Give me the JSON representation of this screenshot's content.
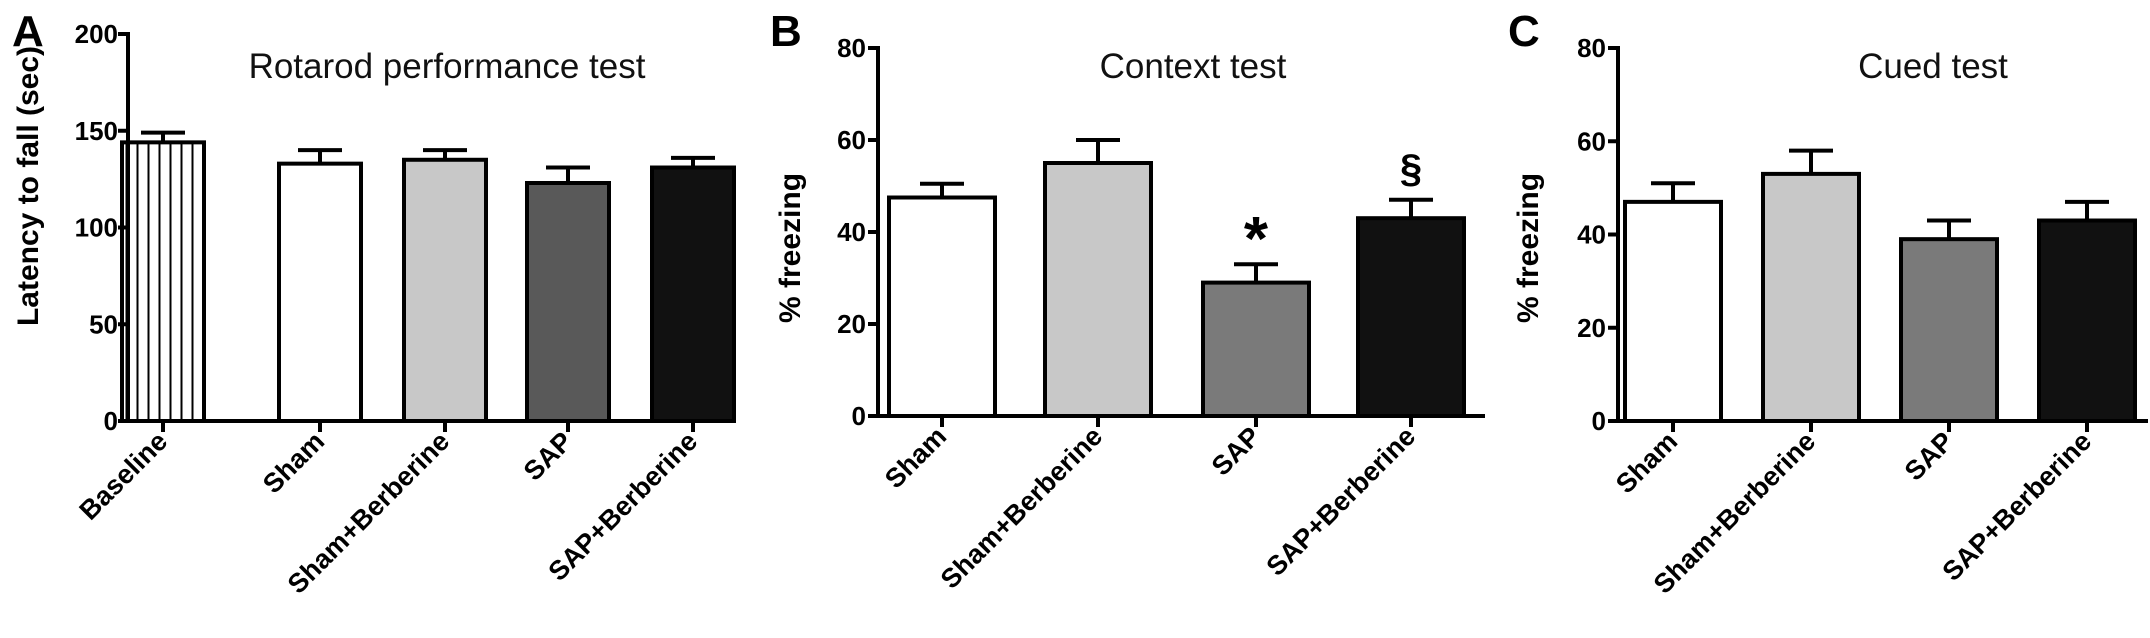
{
  "chart_data": [
    {
      "type": "bar",
      "panel": "A",
      "title": "Rotarod performance test",
      "ylabel": "Latency to fall (sec)",
      "xlabel": "",
      "ylim": [
        0,
        200
      ],
      "yticks": [
        0,
        50,
        100,
        150,
        200
      ],
      "categories": [
        "Baseline",
        "Sham",
        "Sham+Berberine",
        "SAP",
        "SAP+Berberine"
      ],
      "values": [
        144,
        133,
        135,
        123,
        131
      ],
      "errors": [
        5,
        7,
        5,
        8,
        5
      ],
      "fills": [
        "hatched",
        "#ffffff",
        "#c8c8c8",
        "#595959",
        "#111111"
      ],
      "annotations": [
        "",
        "",
        "",
        "",
        ""
      ],
      "grid": false,
      "legend": "none"
    },
    {
      "type": "bar",
      "panel": "B",
      "title": "Context test",
      "ylabel": "% freezing",
      "xlabel": "",
      "ylim": [
        0,
        80
      ],
      "yticks": [
        0,
        20,
        40,
        60,
        80
      ],
      "categories": [
        "Sham",
        "Sham+Berberine",
        "SAP",
        "SAP+Berberine"
      ],
      "values": [
        47.5,
        55,
        29,
        43
      ],
      "errors": [
        3,
        5,
        4,
        4
      ],
      "fills": [
        "#ffffff",
        "#c8c8c8",
        "#7a7a7a",
        "#111111"
      ],
      "annotations": [
        "",
        "",
        "*",
        "§"
      ],
      "grid": false,
      "legend": "none"
    },
    {
      "type": "bar",
      "panel": "C",
      "title": "Cued test",
      "ylabel": "% freezing",
      "xlabel": "",
      "ylim": [
        0,
        80
      ],
      "yticks": [
        0,
        20,
        40,
        60,
        80
      ],
      "categories": [
        "Sham",
        "Sham+Berberine",
        "SAP",
        "SAP+Berberine"
      ],
      "values": [
        47,
        53,
        39,
        43
      ],
      "errors": [
        4,
        5,
        4,
        4
      ],
      "fills": [
        "#ffffff",
        "#c8c8c8",
        "#7a7a7a",
        "#111111"
      ],
      "annotations": [
        "",
        "",
        "",
        ""
      ],
      "grid": false,
      "legend": "none"
    }
  ]
}
